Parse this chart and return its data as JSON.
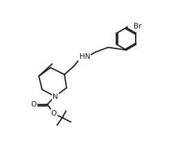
{
  "bg_color": "#ffffff",
  "line_color": "#1a1a1a",
  "lw": 1.3,
  "fs": 7.5,
  "label_HN": "HN",
  "label_N": "N",
  "label_O1": "O",
  "label_O2": "O",
  "label_Br": "Br"
}
